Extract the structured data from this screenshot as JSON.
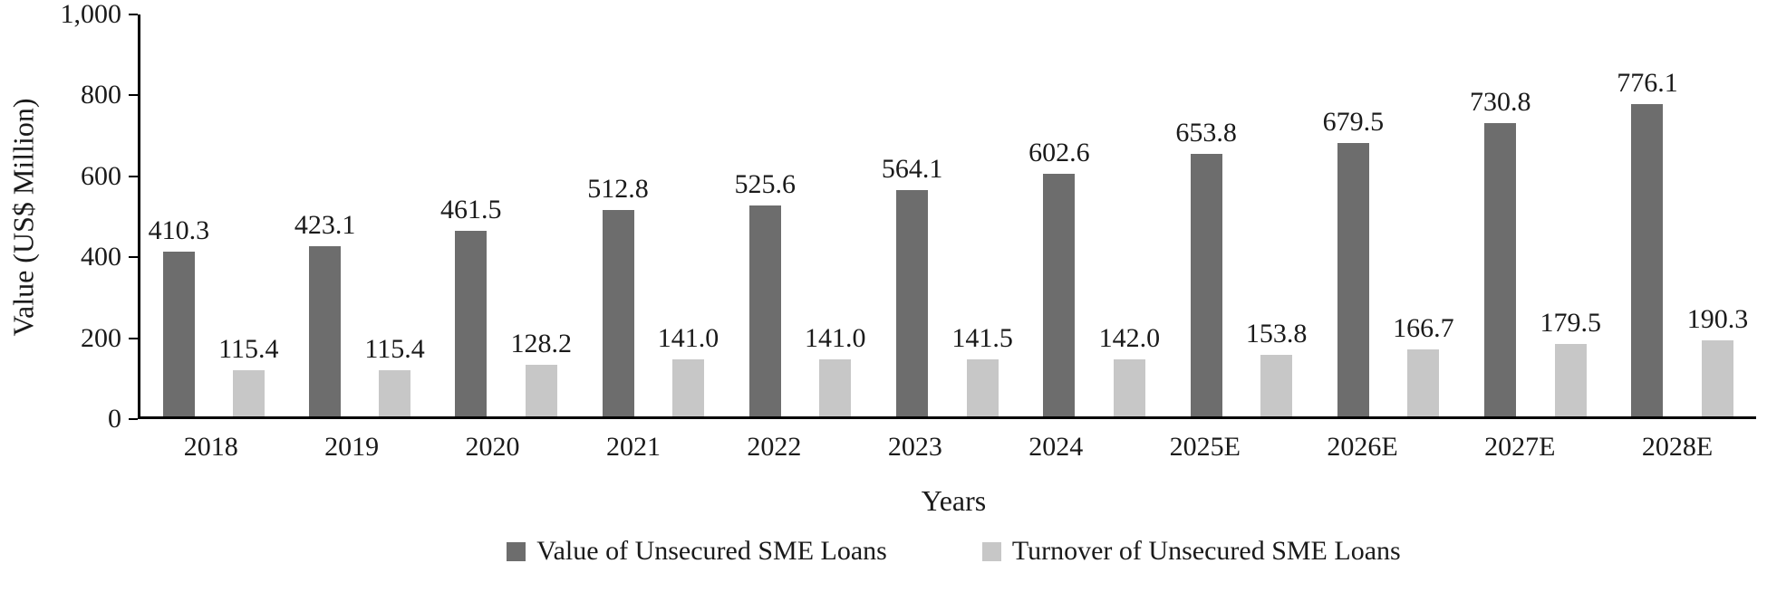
{
  "chart_data": {
    "type": "bar",
    "xlabel": "Years",
    "ylabel": "Value (US$ Million)",
    "ylim": [
      0,
      1000
    ],
    "yticks": [
      0,
      200,
      400,
      600,
      800,
      1000
    ],
    "ytick_labels": [
      "0",
      "200",
      "400",
      "600",
      "800",
      "1,000"
    ],
    "grid": false,
    "legend_position": "bottom",
    "categories": [
      "2018",
      "2019",
      "2020",
      "2021",
      "2022",
      "2023",
      "2024",
      "2025E",
      "2026E",
      "2027E",
      "2028E"
    ],
    "series": [
      {
        "name": "Value of Unsecured SME Loans",
        "color": "#6d6d6d",
        "values": [
          410.3,
          423.1,
          461.5,
          512.8,
          525.6,
          564.1,
          602.6,
          653.8,
          679.5,
          730.8,
          776.1
        ]
      },
      {
        "name": "Turnover of Unsecured SME Loans",
        "color": "#c7c7c7",
        "values": [
          115.4,
          115.4,
          128.2,
          141.0,
          141.0,
          141.5,
          142.0,
          153.8,
          166.7,
          179.5,
          190.3
        ]
      }
    ]
  }
}
